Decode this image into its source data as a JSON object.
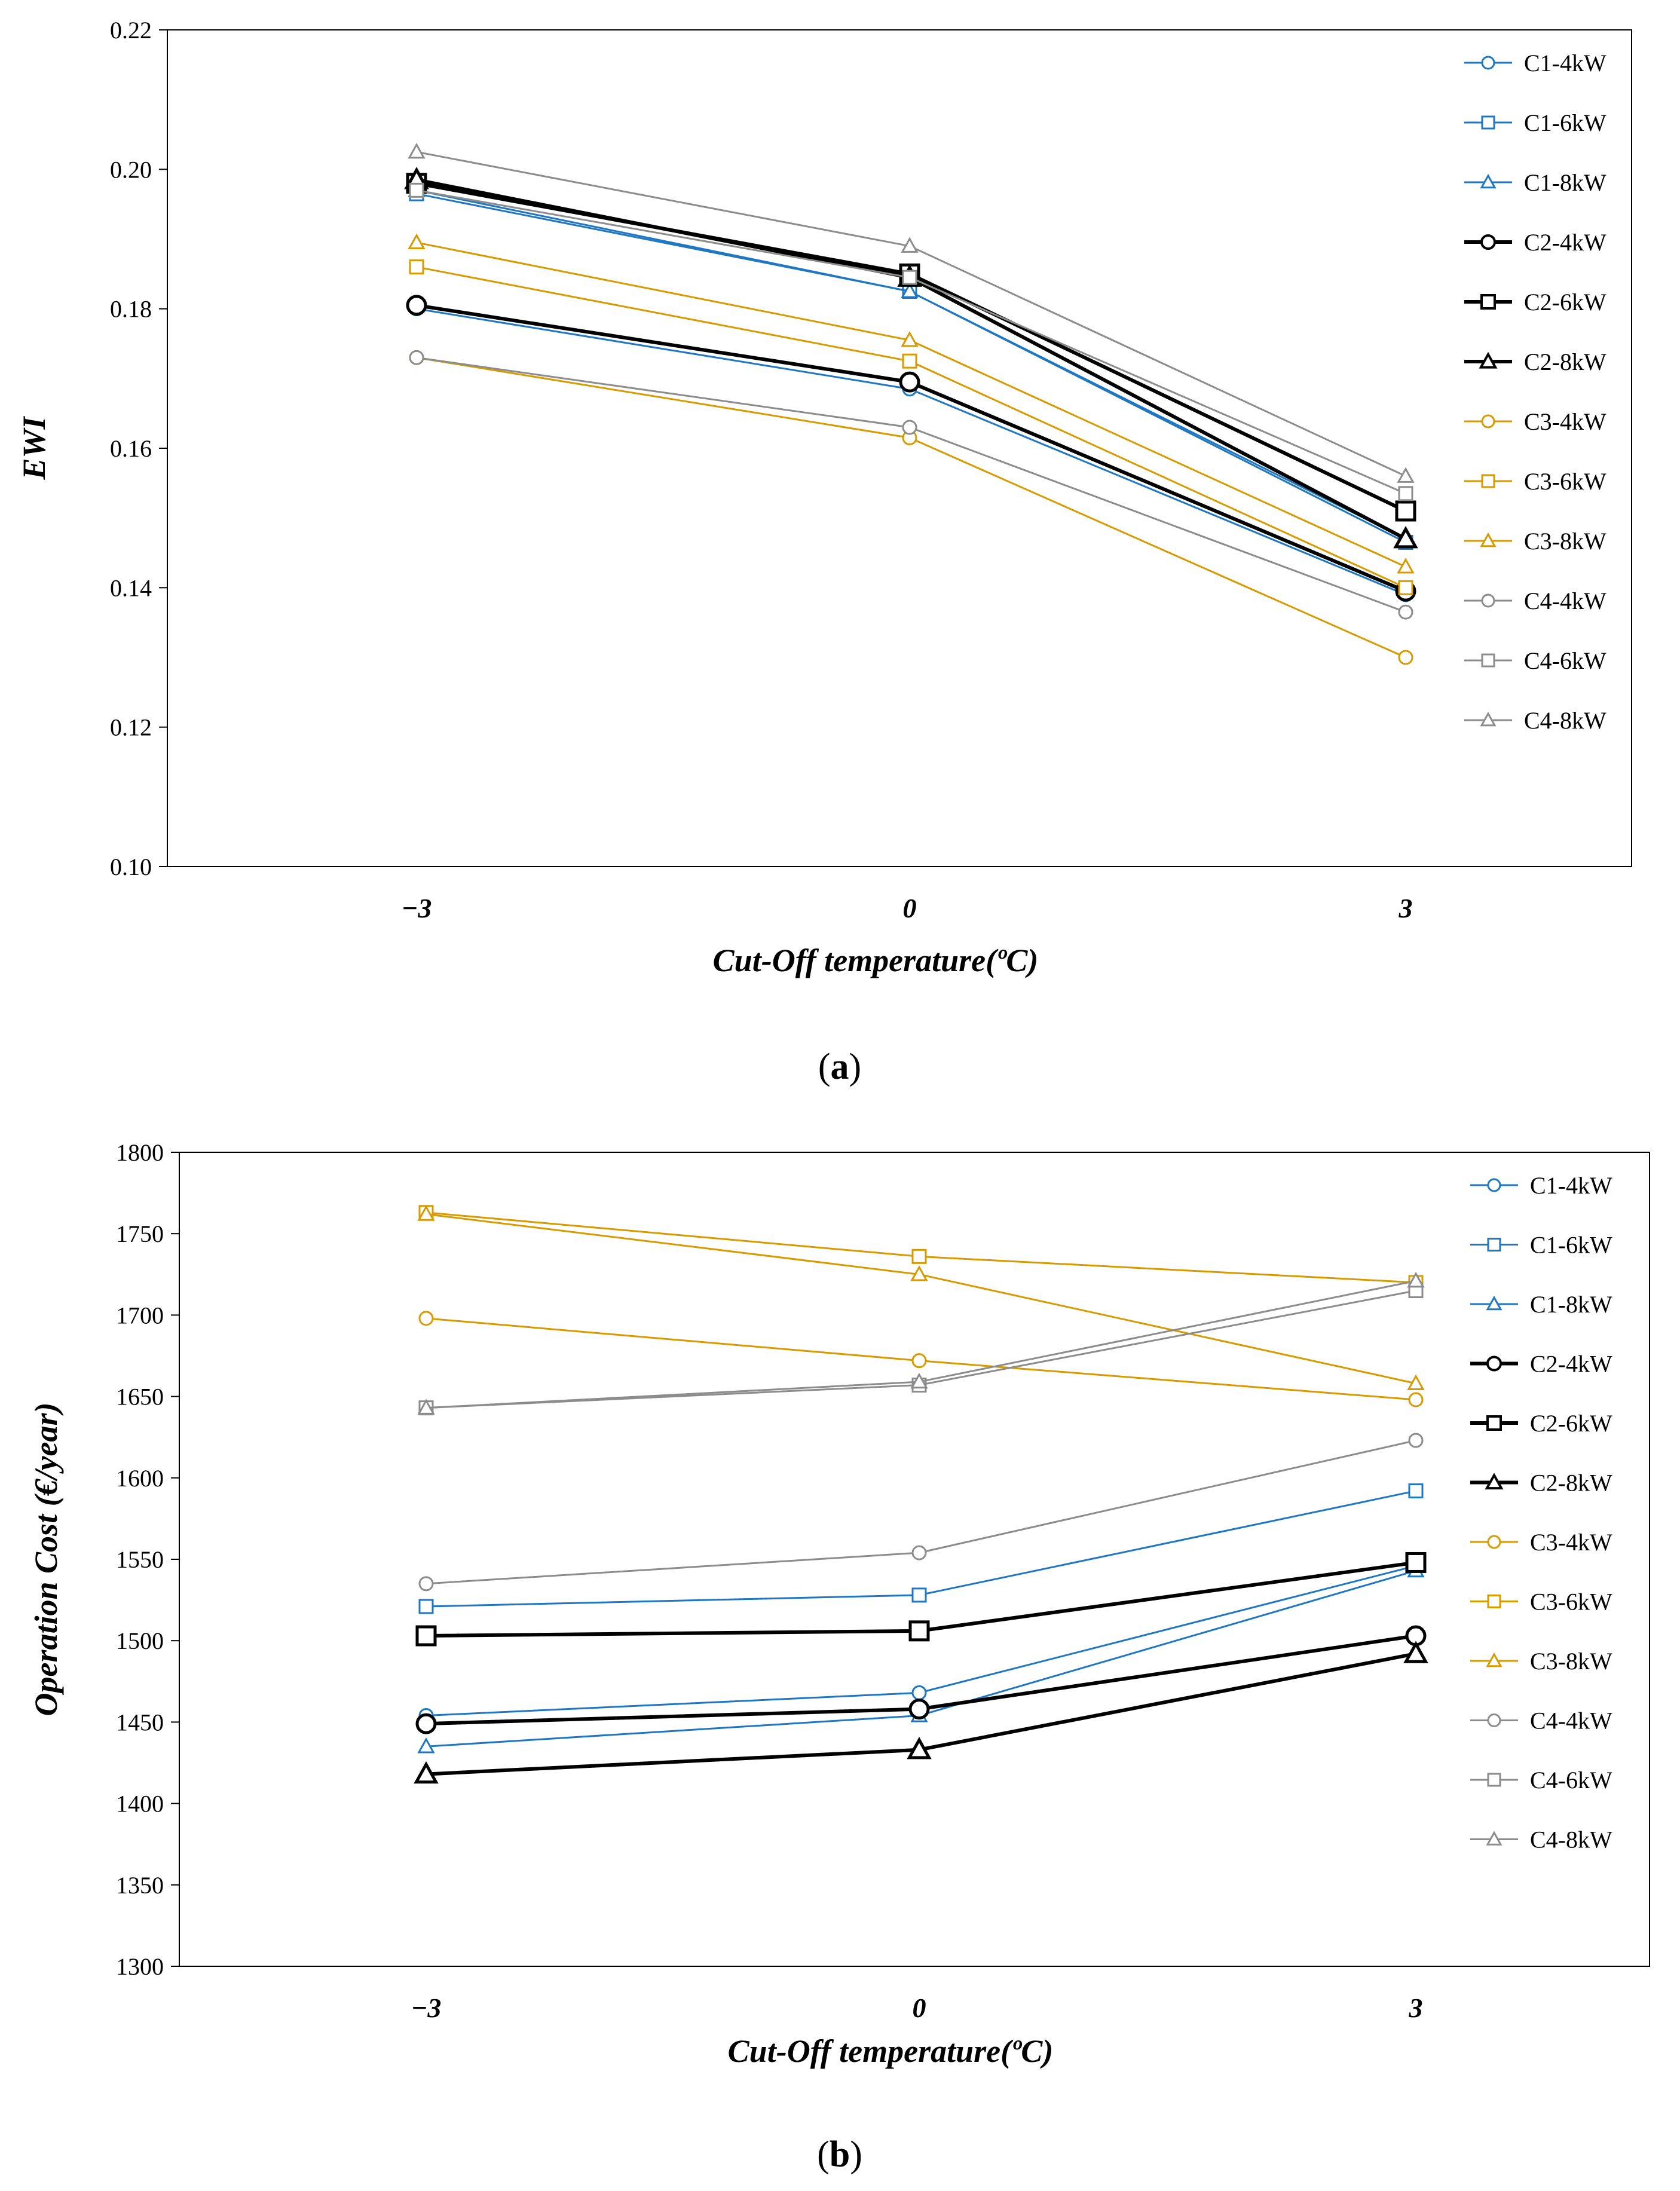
{
  "series_styles": {
    "C1-4kW": {
      "color": "#1f77c1",
      "marker": "circle",
      "width": 3
    },
    "C1-6kW": {
      "color": "#1f77c1",
      "marker": "square",
      "width": 3
    },
    "C1-8kW": {
      "color": "#1f77c1",
      "marker": "triangle",
      "width": 3
    },
    "C2-4kW": {
      "color": "#000000",
      "marker": "circle",
      "width": 6
    },
    "C2-6kW": {
      "color": "#000000",
      "marker": "square",
      "width": 6
    },
    "C2-8kW": {
      "color": "#000000",
      "marker": "triangle",
      "width": 6
    },
    "C3-4kW": {
      "color": "#d79a00",
      "marker": "circle",
      "width": 3
    },
    "C3-6kW": {
      "color": "#d79a00",
      "marker": "square",
      "width": 3
    },
    "C3-8kW": {
      "color": "#d79a00",
      "marker": "triangle",
      "width": 3
    },
    "C4-4kW": {
      "color": "#8c8c8c",
      "marker": "circle",
      "width": 3
    },
    "C4-6kW": {
      "color": "#8c8c8c",
      "marker": "square",
      "width": 3
    },
    "C4-8kW": {
      "color": "#8c8c8c",
      "marker": "triangle",
      "width": 3
    }
  },
  "chart_data": [
    {
      "type": "line",
      "caption": "a",
      "title": "",
      "xlabel": "Cut-Off temperature(ºC)",
      "ylabel": "EWI",
      "x": [
        -3,
        0,
        3
      ],
      "x_tick_labels": [
        "−3",
        "0",
        "3"
      ],
      "ylim": [
        0.1,
        0.22
      ],
      "y_ticks": [
        "0.10",
        "0.12",
        "0.14",
        "0.16",
        "0.18",
        "0.20",
        "0.22"
      ],
      "legend_position": "right",
      "series": [
        {
          "name": "C1-4kW",
          "values": [
            0.18,
            0.1685,
            0.139
          ]
        },
        {
          "name": "C1-6kW",
          "values": [
            0.1965,
            0.1825,
            0.1465
          ]
        },
        {
          "name": "C1-8kW",
          "values": [
            0.197,
            0.1825,
            0.147
          ]
        },
        {
          "name": "C2-4kW",
          "values": [
            0.1805,
            0.1695,
            0.1395
          ]
        },
        {
          "name": "C2-6kW",
          "values": [
            0.198,
            0.185,
            0.151
          ]
        },
        {
          "name": "C2-8kW",
          "values": [
            0.1985,
            0.1845,
            0.147
          ]
        },
        {
          "name": "C3-4kW",
          "values": [
            0.173,
            0.1615,
            0.13
          ]
        },
        {
          "name": "C3-6kW",
          "values": [
            0.186,
            0.1725,
            0.14
          ]
        },
        {
          "name": "C3-8kW",
          "values": [
            0.1895,
            0.1755,
            0.143
          ]
        },
        {
          "name": "C4-4kW",
          "values": [
            0.173,
            0.163,
            0.1365
          ]
        },
        {
          "name": "C4-6kW",
          "values": [
            0.197,
            0.1845,
            0.1535
          ]
        },
        {
          "name": "C4-8kW",
          "values": [
            0.2025,
            0.189,
            0.156
          ]
        }
      ]
    },
    {
      "type": "line",
      "caption": "b",
      "title": "",
      "xlabel": "Cut-Off temperature(ºC)",
      "ylabel": "Operation Cost (€/year)",
      "x": [
        -3,
        0,
        3
      ],
      "x_tick_labels": [
        "−3",
        "0",
        "3"
      ],
      "ylim": [
        1300,
        1800
      ],
      "y_ticks": [
        "1300",
        "1350",
        "1400",
        "1450",
        "1500",
        "1550",
        "1600",
        "1650",
        "1700",
        "1750",
        "1800"
      ],
      "legend_position": "right",
      "series": [
        {
          "name": "C1-4kW",
          "values": [
            1454,
            1468,
            1546
          ]
        },
        {
          "name": "C1-6kW",
          "values": [
            1521,
            1528,
            1592
          ]
        },
        {
          "name": "C1-8kW",
          "values": [
            1435,
            1454,
            1543
          ]
        },
        {
          "name": "C2-4kW",
          "values": [
            1449,
            1458,
            1503
          ]
        },
        {
          "name": "C2-6kW",
          "values": [
            1503,
            1506,
            1548
          ]
        },
        {
          "name": "C2-8kW",
          "values": [
            1418,
            1433,
            1492
          ]
        },
        {
          "name": "C3-4kW",
          "values": [
            1698,
            1672,
            1648
          ]
        },
        {
          "name": "C3-6kW",
          "values": [
            1763,
            1736,
            1720
          ]
        },
        {
          "name": "C3-8kW",
          "values": [
            1762,
            1725,
            1658
          ]
        },
        {
          "name": "C4-4kW",
          "values": [
            1535,
            1554,
            1623
          ]
        },
        {
          "name": "C4-6kW",
          "values": [
            1643,
            1657,
            1715
          ]
        },
        {
          "name": "C4-8kW",
          "values": [
            1643,
            1659,
            1721
          ]
        }
      ]
    }
  ]
}
